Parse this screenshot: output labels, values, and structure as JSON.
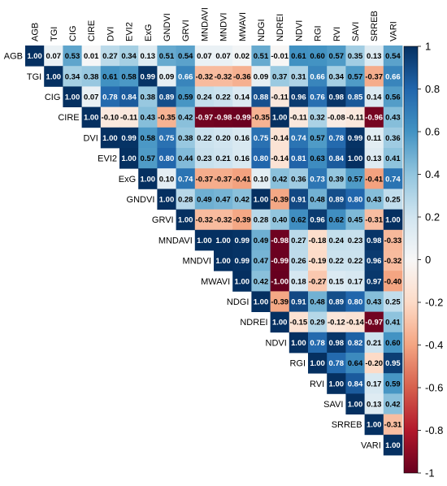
{
  "chart_data": {
    "type": "heatmap",
    "title": "",
    "shape": "upper-triangle correlation matrix",
    "variables": [
      "AGB",
      "TGI",
      "CIG",
      "CIRE",
      "DVI",
      "EVI2",
      "ExG",
      "GNDVI",
      "GRVI",
      "MNDAVI",
      "MNDVI",
      "MWAVI",
      "NDGI",
      "NDREI",
      "NDVI",
      "RGI",
      "RVI",
      "SAVI",
      "SRREB",
      "VARI"
    ],
    "matrix": [
      [
        1.0,
        0.07,
        0.53,
        0.01,
        0.27,
        0.34,
        0.13,
        0.51,
        0.54,
        0.07,
        0.07,
        0.02,
        0.51,
        -0.01,
        0.61,
        0.6,
        0.57,
        0.35,
        0.13,
        0.54
      ],
      [
        null,
        1.0,
        0.34,
        0.38,
        0.61,
        0.58,
        0.99,
        0.09,
        0.66,
        -0.32,
        -0.32,
        -0.36,
        0.09,
        0.37,
        0.31,
        0.66,
        0.34,
        0.57,
        -0.37,
        0.66
      ],
      [
        null,
        null,
        1.0,
        0.07,
        0.78,
        0.84,
        0.38,
        0.89,
        0.59,
        0.24,
        0.22,
        0.14,
        0.88,
        -0.11,
        0.96,
        0.76,
        0.98,
        0.85,
        0.14,
        0.56
      ],
      [
        null,
        null,
        null,
        1.0,
        -0.1,
        -0.11,
        0.43,
        -0.35,
        0.42,
        -0.97,
        -0.98,
        -0.99,
        -0.35,
        1.0,
        -0.11,
        0.32,
        -0.08,
        -0.11,
        -0.96,
        0.43
      ],
      [
        null,
        null,
        null,
        null,
        1.0,
        0.99,
        0.58,
        0.75,
        0.38,
        0.22,
        0.2,
        0.16,
        0.75,
        -0.14,
        0.74,
        0.57,
        0.78,
        0.99,
        0.11,
        0.36
      ],
      [
        null,
        null,
        null,
        null,
        null,
        1.0,
        0.57,
        0.8,
        0.44,
        0.23,
        0.21,
        0.16,
        0.8,
        -0.14,
        0.81,
        0.63,
        0.84,
        1.0,
        0.13,
        0.41
      ],
      [
        null,
        null,
        null,
        null,
        null,
        null,
        1.0,
        0.1,
        0.74,
        -0.37,
        -0.37,
        -0.41,
        0.1,
        0.42,
        0.36,
        0.73,
        0.39,
        0.57,
        -0.41,
        0.74
      ],
      [
        null,
        null,
        null,
        null,
        null,
        null,
        null,
        1.0,
        0.28,
        0.49,
        0.47,
        0.42,
        1.0,
        -0.39,
        0.91,
        0.48,
        0.89,
        0.8,
        0.43,
        0.25
      ],
      [
        null,
        null,
        null,
        null,
        null,
        null,
        null,
        null,
        1.0,
        -0.32,
        -0.32,
        -0.39,
        0.28,
        0.4,
        0.62,
        0.96,
        0.62,
        0.45,
        -0.31,
        1.0
      ],
      [
        null,
        null,
        null,
        null,
        null,
        null,
        null,
        null,
        null,
        1.0,
        1.0,
        0.99,
        0.49,
        -0.98,
        0.27,
        -0.18,
        0.24,
        0.23,
        0.98,
        -0.33
      ],
      [
        null,
        null,
        null,
        null,
        null,
        null,
        null,
        null,
        null,
        null,
        1.0,
        0.99,
        0.47,
        -0.99,
        0.26,
        -0.19,
        0.22,
        0.22,
        0.96,
        -0.32
      ],
      [
        null,
        null,
        null,
        null,
        null,
        null,
        null,
        null,
        null,
        null,
        null,
        1.0,
        0.42,
        -1.0,
        0.18,
        -0.27,
        0.15,
        0.17,
        0.97,
        -0.4
      ],
      [
        null,
        null,
        null,
        null,
        null,
        null,
        null,
        null,
        null,
        null,
        null,
        null,
        1.0,
        -0.39,
        0.91,
        0.48,
        0.89,
        0.8,
        0.43,
        0.25
      ],
      [
        null,
        null,
        null,
        null,
        null,
        null,
        null,
        null,
        null,
        null,
        null,
        null,
        null,
        1.0,
        -0.15,
        0.29,
        -0.12,
        -0.14,
        -0.97,
        0.41
      ],
      [
        null,
        null,
        null,
        null,
        null,
        null,
        null,
        null,
        null,
        null,
        null,
        null,
        null,
        null,
        1.0,
        0.78,
        0.98,
        0.82,
        0.21,
        0.6
      ],
      [
        null,
        null,
        null,
        null,
        null,
        null,
        null,
        null,
        null,
        null,
        null,
        null,
        null,
        null,
        null,
        1.0,
        0.78,
        0.64,
        -0.2,
        0.95
      ],
      [
        null,
        null,
        null,
        null,
        null,
        null,
        null,
        null,
        null,
        null,
        null,
        null,
        null,
        null,
        null,
        null,
        1.0,
        0.84,
        0.17,
        0.59
      ],
      [
        null,
        null,
        null,
        null,
        null,
        null,
        null,
        null,
        null,
        null,
        null,
        null,
        null,
        null,
        null,
        null,
        null,
        1.0,
        0.13,
        0.42
      ],
      [
        null,
        null,
        null,
        null,
        null,
        null,
        null,
        null,
        null,
        null,
        null,
        null,
        null,
        null,
        null,
        null,
        null,
        null,
        1.0,
        -0.31
      ],
      [
        null,
        null,
        null,
        null,
        null,
        null,
        null,
        null,
        null,
        null,
        null,
        null,
        null,
        null,
        null,
        null,
        null,
        null,
        null,
        1.0
      ]
    ],
    "colorbar": {
      "min": -1,
      "max": 1,
      "ticks": [
        1,
        0.8,
        0.6,
        0.4,
        0.2,
        0,
        -0.2,
        -0.4,
        -0.6,
        -0.8,
        -1
      ],
      "tick_labels": [
        "1",
        "0.8",
        "0.6",
        "0.4",
        "0.2",
        "0",
        "-0.2",
        "-0.4",
        "-0.6",
        "-0.8",
        "-1"
      ],
      "colormap": [
        "#67001f",
        "#b2182b",
        "#d6604d",
        "#f4a582",
        "#fddbc7",
        "#f7f7f7",
        "#d1e5f0",
        "#92c5de",
        "#4393c3",
        "#2166ac",
        "#053061"
      ],
      "placement": "right"
    },
    "xlabel": "",
    "ylabel": "",
    "grid": false
  }
}
